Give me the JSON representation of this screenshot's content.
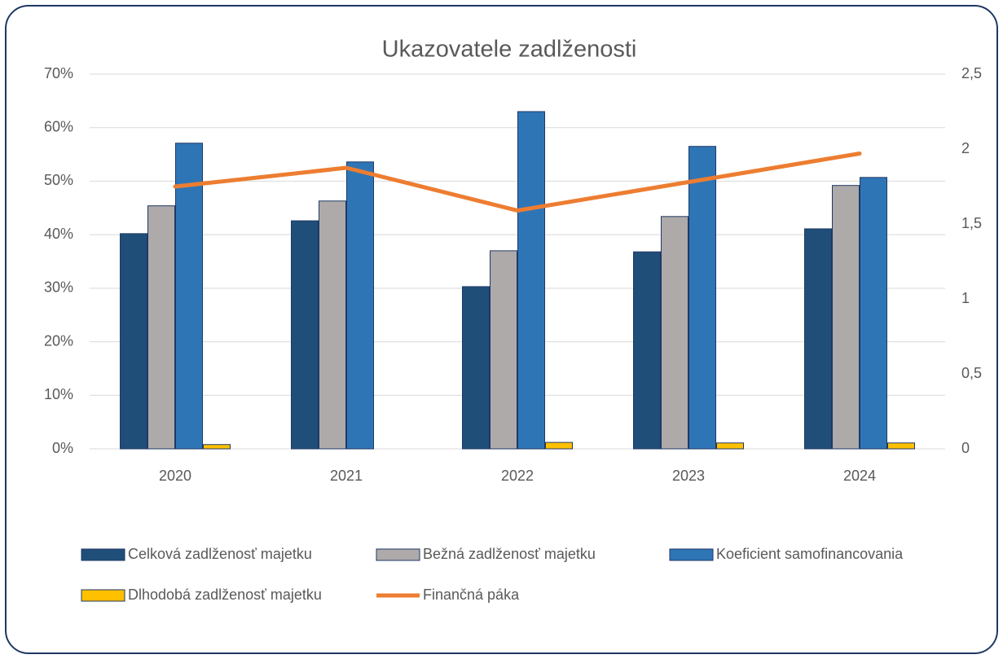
{
  "chart_data": {
    "type": "bar+line",
    "title": "Ukazovatele zadlženosti",
    "categories": [
      "2020",
      "2021",
      "2022",
      "2023",
      "2024"
    ],
    "series": [
      {
        "name": "Celková zadlženosť majetku",
        "type": "bar",
        "color": "#1f4e79",
        "values": [
          40.2,
          42.6,
          30.3,
          36.8,
          41.1
        ]
      },
      {
        "name": "Bežná zadlženosť majetku",
        "type": "bar",
        "color": "#aeaaaa",
        "values": [
          45.4,
          46.3,
          37.0,
          43.4,
          49.2
        ]
      },
      {
        "name": "Koeficient samofinancovania",
        "type": "bar",
        "color": "#2e75b6",
        "values": [
          57.1,
          53.6,
          63.0,
          56.5,
          50.7
        ]
      },
      {
        "name": "Dlhodobá zadlženosť majetku",
        "type": "bar",
        "color": "#ffc000",
        "values": [
          0.8,
          0,
          1.2,
          1.1,
          1.1
        ]
      },
      {
        "name": "Finančná páka",
        "type": "line",
        "axis": "y2",
        "color": "#ed7d31",
        "values": [
          1.75,
          1.875,
          1.59,
          1.78,
          1.97
        ]
      }
    ],
    "ylim": [
      0,
      70
    ],
    "yticks": [
      {
        "value": 0,
        "label": "0%"
      },
      {
        "value": 10,
        "label": "10%"
      },
      {
        "value": 20,
        "label": "20%"
      },
      {
        "value": 30,
        "label": "30%"
      },
      {
        "value": 40,
        "label": "40%"
      },
      {
        "value": 50,
        "label": "50%"
      },
      {
        "value": 60,
        "label": "60%"
      },
      {
        "value": 70,
        "label": "70%"
      }
    ],
    "y2lim": [
      0,
      2.5
    ],
    "y2ticks": [
      0,
      {
        "value": 0.5,
        "label": "0,5"
      },
      1,
      {
        "value": 1.5,
        "label": "1,5"
      },
      2,
      {
        "value": 2.5,
        "label": "2,5"
      }
    ],
    "grid": true,
    "legend": "bottom"
  }
}
